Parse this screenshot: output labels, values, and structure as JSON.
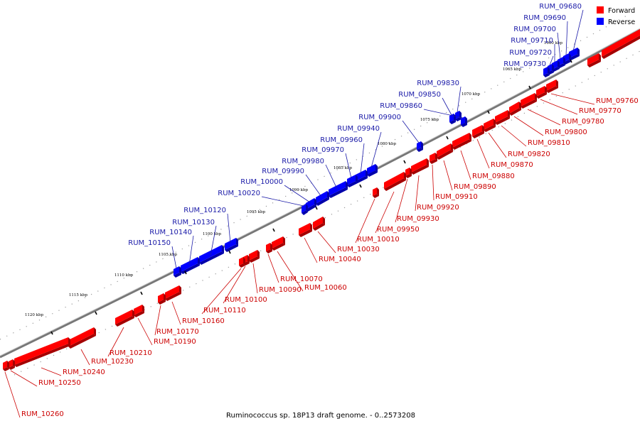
{
  "legend": {
    "items": [
      {
        "label": "Forward",
        "color": "#ff0000"
      },
      {
        "label": "Reverse",
        "color": "#0000ff"
      }
    ]
  },
  "caption": "Ruminococcus sp. 18P13 draft genome. - 0..2573208",
  "colors": {
    "forward": "#ff0000",
    "reverse": "#0000ff",
    "forward_label": "#cc0000",
    "reverse_label": "#1a1aa8",
    "backbone": "#888888"
  },
  "scale_ticks": [
    {
      "label": "1060 kbp"
    },
    {
      "label": "1065 kbp"
    },
    {
      "label": "1070 kbp"
    },
    {
      "label": "1075 kbp"
    },
    {
      "label": "1080 kbp"
    },
    {
      "label": "1085 kbp"
    },
    {
      "label": "1090 kbp"
    },
    {
      "label": "1095 kbp"
    },
    {
      "label": "1100 kbp"
    },
    {
      "label": "1105 kbp"
    },
    {
      "label": "1110 kbp"
    },
    {
      "label": "1115 kbp"
    },
    {
      "label": "1120 kbp"
    }
  ],
  "reverse_genes": [
    "RUM_09680",
    "RUM_09690",
    "RUM_09700",
    "RUM_09710",
    "RUM_09720",
    "RUM_09730",
    "RUM_09830",
    "RUM_09850",
    "RUM_09860",
    "RUM_09900",
    "RUM_09940",
    "RUM_09960",
    "RUM_09970",
    "RUM_09980",
    "RUM_09990",
    "RUM_10000",
    "RUM_10020",
    "RUM_10120",
    "RUM_10130",
    "RUM_10140",
    "RUM_10150"
  ],
  "forward_genes": [
    "RUM_09760",
    "RUM_09770",
    "RUM_09780",
    "RUM_09800",
    "RUM_09810",
    "RUM_09820",
    "RUM_09870",
    "RUM_09880",
    "RUM_09890",
    "RUM_09910",
    "RUM_09920",
    "RUM_09930",
    "RUM_09950",
    "RUM_10010",
    "RUM_10030",
    "RUM_10040",
    "RUM_10060",
    "RUM_10070",
    "RUM_10090",
    "RUM_10100",
    "RUM_10110",
    "RUM_10160",
    "RUM_10170",
    "RUM_10190",
    "RUM_10210",
    "RUM_10230",
    "RUM_10240",
    "RUM_10250",
    "RUM_10260"
  ]
}
